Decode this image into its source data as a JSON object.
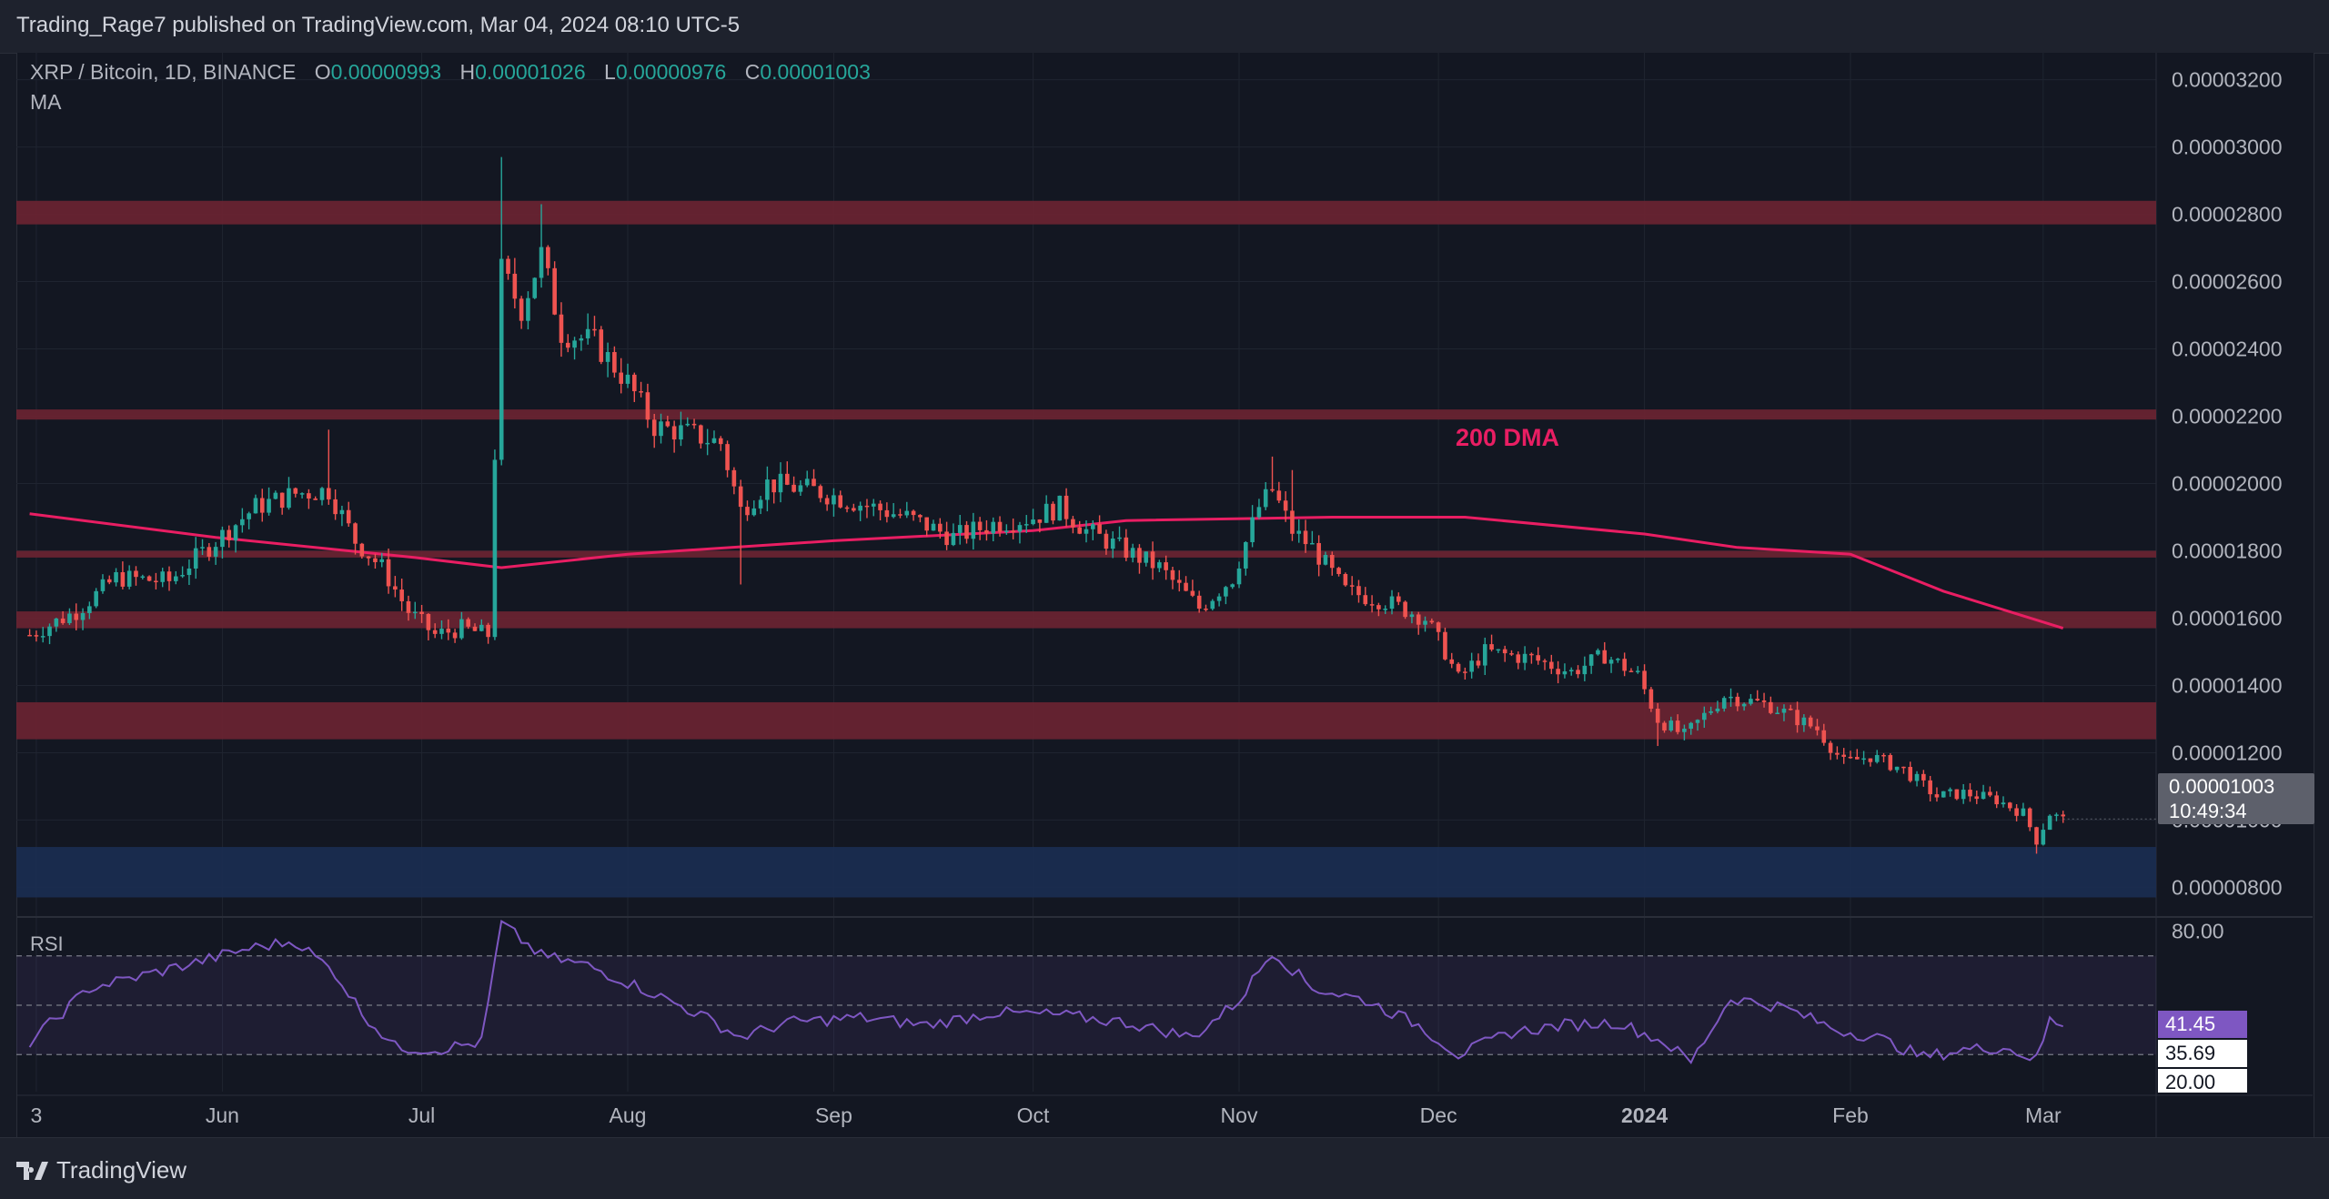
{
  "header": {
    "publisher": "Trading_Rage7 published on TradingView.com, Mar 04, 2024 08:10 UTC-5"
  },
  "legend": {
    "symbol": "XRP / Bitcoin, 1D, BINANCE",
    "o_label": "O",
    "o_value": "0.00000993",
    "h_label": "H",
    "h_value": "0.00001026",
    "l_label": "L",
    "l_value": "0.00000976",
    "c_label": "C",
    "c_value": "0.00001003",
    "indicator": "MA"
  },
  "annotation": "200 DMA",
  "last_price": {
    "price": "0.00001003",
    "countdown": "10:49:34"
  },
  "rsi_panel": {
    "label": "RSI",
    "value_tag": "41.45",
    "ma_tag": "35.69",
    "level_tag": "20.00",
    "top_tick": "80.00"
  },
  "footer": {
    "brand": "TradingView"
  },
  "colors": {
    "up": "#26a69a",
    "down": "#ef5350",
    "ma": "#e91e63",
    "resistance_zone": "#6d2432",
    "support_zone": "#1b2d52",
    "rsi_line": "#7e57c2"
  },
  "chart_data": [
    {
      "type": "candlestick",
      "title": "XRP / Bitcoin, 1D, BINANCE",
      "x_ticks": [
        "3",
        "Jun",
        "Jul",
        "Aug",
        "Sep",
        "Oct",
        "Nov",
        "Dec",
        "2024",
        "Feb",
        "Mar"
      ],
      "y_ticks": [
        "0.00003200",
        "0.00003000",
        "0.00002800",
        "0.00002600",
        "0.00002400",
        "0.00002200",
        "0.00002000",
        "0.00001800",
        "0.00001600",
        "0.00001400",
        "0.00001200",
        "0.00001000",
        "0.00000800"
      ],
      "ylim": [
        7.2e-06,
        3.28e-05
      ],
      "grid": true,
      "close_path": [
        [
          "2023-05-03",
          1.55e-05
        ],
        [
          "2023-05-10",
          1.62e-05
        ],
        [
          "2023-05-16",
          1.72e-05
        ],
        [
          "2023-05-24",
          1.71e-05
        ],
        [
          "2023-05-31",
          1.83e-05
        ],
        [
          "2023-06-06",
          1.93e-05
        ],
        [
          "2023-06-12",
          1.97e-05
        ],
        [
          "2023-06-17",
          1.98e-05
        ],
        [
          "2023-06-21",
          1.83e-05
        ],
        [
          "2023-06-25",
          1.75e-05
        ],
        [
          "2023-06-29",
          1.62e-05
        ],
        [
          "2023-07-03",
          1.55e-05
        ],
        [
          "2023-07-07",
          1.57e-05
        ],
        [
          "2023-07-11",
          1.55e-05
        ],
        [
          "2023-07-13",
          2.63e-05
        ],
        [
          "2023-07-16",
          2.52e-05
        ],
        [
          "2023-07-19",
          2.68e-05
        ],
        [
          "2023-07-22",
          2.45e-05
        ],
        [
          "2023-07-27",
          2.42e-05
        ],
        [
          "2023-08-01",
          2.3e-05
        ],
        [
          "2023-08-05",
          2.17e-05
        ],
        [
          "2023-08-10",
          2.15e-05
        ],
        [
          "2023-08-15",
          2.12e-05
        ],
        [
          "2023-08-18",
          1.92e-05
        ],
        [
          "2023-08-22",
          2e-05
        ],
        [
          "2023-08-29",
          1.98e-05
        ],
        [
          "2023-09-05",
          1.94e-05
        ],
        [
          "2023-09-12",
          1.9e-05
        ],
        [
          "2023-09-19",
          1.84e-05
        ],
        [
          "2023-09-25",
          1.88e-05
        ],
        [
          "2023-10-01",
          1.9e-05
        ],
        [
          "2023-10-05",
          1.93e-05
        ],
        [
          "2023-10-09",
          1.86e-05
        ],
        [
          "2023-10-14",
          1.81e-05
        ],
        [
          "2023-10-20",
          1.75e-05
        ],
        [
          "2023-10-26",
          1.63e-05
        ],
        [
          "2023-10-31",
          1.72e-05
        ],
        [
          "2023-11-04",
          1.93e-05
        ],
        [
          "2023-11-06",
          1.98e-05
        ],
        [
          "2023-11-09",
          1.86e-05
        ],
        [
          "2023-11-12",
          1.81e-05
        ],
        [
          "2023-11-17",
          1.68e-05
        ],
        [
          "2023-11-23",
          1.65e-05
        ],
        [
          "2023-11-29",
          1.6e-05
        ],
        [
          "2023-12-02",
          1.5e-05
        ],
        [
          "2023-12-04",
          1.42e-05
        ],
        [
          "2023-12-08",
          1.5e-05
        ],
        [
          "2023-12-15",
          1.48e-05
        ],
        [
          "2023-12-21",
          1.44e-05
        ],
        [
          "2023-12-26",
          1.49e-05
        ],
        [
          "2023-12-31",
          1.43e-05
        ],
        [
          "2024-01-03",
          1.3e-05
        ],
        [
          "2024-01-07",
          1.25e-05
        ],
        [
          "2024-01-10",
          1.31e-05
        ],
        [
          "2024-01-13",
          1.37e-05
        ],
        [
          "2024-01-20",
          1.34e-05
        ],
        [
          "2024-01-27",
          1.27e-05
        ],
        [
          "2024-01-31",
          1.17e-05
        ],
        [
          "2024-02-04",
          1.19e-05
        ],
        [
          "2024-02-09",
          1.15e-05
        ],
        [
          "2024-02-14",
          1.07e-05
        ],
        [
          "2024-02-18",
          1.08e-05
        ],
        [
          "2024-02-23",
          1.06e-05
        ],
        [
          "2024-02-27",
          1.02e-05
        ],
        [
          "2024-02-29",
          9.4e-06
        ],
        [
          "2024-03-02",
          1.02e-05
        ],
        [
          "2024-03-04",
          1e-05
        ]
      ],
      "wick_extremes": [
        {
          "date": "2023-07-13",
          "high": 2.97e-05
        },
        {
          "date": "2023-07-19",
          "high": 2.83e-05
        },
        {
          "date": "2023-06-17",
          "high": 2.16e-05
        },
        {
          "date": "2023-08-18",
          "low": 1.7e-05
        },
        {
          "date": "2023-11-06",
          "high": 2.08e-05
        },
        {
          "date": "2023-11-09",
          "high": 2.04e-05
        },
        {
          "date": "2024-01-03",
          "low": 1.22e-05
        },
        {
          "date": "2024-02-29",
          "low": 9e-06
        }
      ],
      "ma200": [
        [
          "2023-05-03",
          1.91e-05
        ],
        [
          "2023-05-31",
          1.84e-05
        ],
        [
          "2023-06-30",
          1.78e-05
        ],
        [
          "2023-07-13",
          1.75e-05
        ],
        [
          "2023-08-01",
          1.79e-05
        ],
        [
          "2023-09-01",
          1.83e-05
        ],
        [
          "2023-10-01",
          1.86e-05
        ],
        [
          "2023-10-15",
          1.89e-05
        ],
        [
          "2023-11-15",
          1.9e-05
        ],
        [
          "2023-12-05",
          1.9e-05
        ],
        [
          "2024-01-01",
          1.85e-05
        ],
        [
          "2024-01-15",
          1.81e-05
        ],
        [
          "2024-02-01",
          1.79e-05
        ],
        [
          "2024-02-15",
          1.68e-05
        ],
        [
          "2024-03-04",
          1.57e-05
        ]
      ],
      "zones": [
        {
          "kind": "resistance",
          "from": 2.77e-05,
          "to": 2.84e-05
        },
        {
          "kind": "resistance",
          "from": 2.19e-05,
          "to": 2.22e-05
        },
        {
          "kind": "resistance",
          "from": 1.78e-05,
          "to": 1.8e-05
        },
        {
          "kind": "resistance",
          "from": 1.57e-05,
          "to": 1.62e-05
        },
        {
          "kind": "resistance",
          "from": 1.24e-05,
          "to": 1.35e-05
        },
        {
          "kind": "support",
          "from": 7.7e-06,
          "to": 9.2e-06
        }
      ]
    },
    {
      "type": "line",
      "title": "RSI",
      "top_tick": "80.00",
      "ylim": [
        15,
        85
      ],
      "band": [
        30,
        70
      ],
      "mid": 50,
      "x": [
        "2023-05-03",
        "2023-05-12",
        "2023-05-20",
        "2023-05-29",
        "2023-06-05",
        "2023-06-12",
        "2023-06-18",
        "2023-06-22",
        "2023-06-27",
        "2023-07-03",
        "2023-07-10",
        "2023-07-13",
        "2023-07-19",
        "2023-07-26",
        "2023-08-03",
        "2023-08-12",
        "2023-08-18",
        "2023-08-25",
        "2023-09-05",
        "2023-09-15",
        "2023-09-25",
        "2023-10-05",
        "2023-10-15",
        "2023-10-25",
        "2023-11-01",
        "2023-11-06",
        "2023-11-12",
        "2023-11-20",
        "2023-11-28",
        "2023-12-04",
        "2023-12-12",
        "2023-12-20",
        "2023-12-28",
        "2024-01-04",
        "2024-01-08",
        "2024-01-14",
        "2024-01-22",
        "2024-01-30",
        "2024-02-05",
        "2024-02-12",
        "2024-02-18",
        "2024-02-24",
        "2024-02-29",
        "2024-03-02",
        "2024-03-04"
      ],
      "values": [
        35,
        57,
        62,
        68,
        73,
        76,
        63,
        47,
        33,
        32,
        35,
        83,
        70,
        66,
        57,
        46,
        37,
        43,
        45,
        42,
        47,
        46,
        43,
        37,
        52,
        72,
        57,
        52,
        42,
        30,
        39,
        42,
        43,
        35,
        27,
        53,
        49,
        40,
        37,
        29,
        32,
        33,
        28,
        44,
        41.45
      ],
      "ma": 35.69
    }
  ]
}
